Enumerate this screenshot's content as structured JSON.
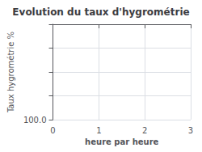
{
  "chart_data": {
    "type": "line",
    "title": "Evolution du taux d'hygrométrie",
    "xlabel": "heure par heure",
    "ylabel": "Taux hygrométrie %",
    "xlim": [
      0,
      3
    ],
    "xticks": [
      0,
      1,
      2,
      3
    ],
    "ylim": [
      100,
      0
    ],
    "yticks": [
      {
        "value": 0,
        "label": null
      },
      {
        "value": 25,
        "label": null
      },
      {
        "value": 50,
        "label": null
      },
      {
        "value": 75,
        "label": null
      },
      {
        "value": 100,
        "label": "100.0"
      }
    ],
    "grid": true
  }
}
